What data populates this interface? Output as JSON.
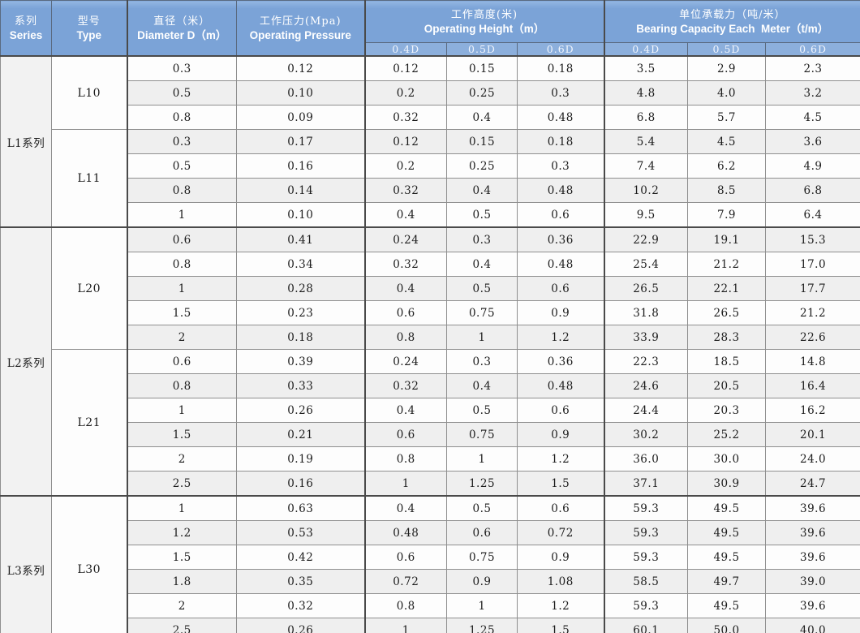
{
  "colors": {
    "header_bg": "#7BA3D7",
    "subheader_bg": "#8CAFDC",
    "header_text": "#FFFFFF",
    "row_bg": "#FDFDFD",
    "row_alt_bg": "#EFEFEF",
    "series_col_bg": "#F2F2F2",
    "border_dark": "#4A4A4A",
    "border_light": "#8F8F8F",
    "cell_text": "#1C1C1C"
  },
  "chart_data": {
    "type": "table",
    "columns": [
      {
        "key": "series",
        "zh": "系列",
        "en": "Series"
      },
      {
        "key": "type",
        "zh": "型号",
        "en": "Type"
      },
      {
        "key": "diameter",
        "zh": "直径（米）",
        "en": "Diameter D（m）"
      },
      {
        "key": "pressure",
        "zh": "工作压力(Mpa)",
        "en": "Operating Pressure"
      },
      {
        "key": "operating_height",
        "zh": "工作高度(米)",
        "en": "Operating Height（m）",
        "subcols": [
          "0.4D",
          "0.5D",
          "0.6D"
        ]
      },
      {
        "key": "bearing_capacity",
        "zh": "单位承载力（吨/米）",
        "en": "Bearing Capacity Each  Meter（t/m）",
        "subcols": [
          "0.4D",
          "0.5D",
          "0.6D"
        ]
      }
    ],
    "row_value_order": [
      "diameter",
      "pressure",
      "oh_0.4D",
      "oh_0.5D",
      "oh_0.6D",
      "bc_0.4D",
      "bc_0.5D",
      "bc_0.6D"
    ],
    "groups": [
      {
        "series": "L1系列",
        "types": [
          {
            "type": "L10",
            "rows": [
              [
                "0.3",
                "0.12",
                "0.12",
                "0.15",
                "0.18",
                "3.5",
                "2.9",
                "2.3"
              ],
              [
                "0.5",
                "0.10",
                "0.2",
                "0.25",
                "0.3",
                "4.8",
                "4.0",
                "3.2"
              ],
              [
                "0.8",
                "0.09",
                "0.32",
                "0.4",
                "0.48",
                "6.8",
                "5.7",
                "4.5"
              ]
            ]
          },
          {
            "type": "L11",
            "rows": [
              [
                "0.3",
                "0.17",
                "0.12",
                "0.15",
                "0.18",
                "5.4",
                "4.5",
                "3.6"
              ],
              [
                "0.5",
                "0.16",
                "0.2",
                "0.25",
                "0.3",
                "7.4",
                "6.2",
                "4.9"
              ],
              [
                "0.8",
                "0.14",
                "0.32",
                "0.4",
                "0.48",
                "10.2",
                "8.5",
                "6.8"
              ],
              [
                "1",
                "0.10",
                "0.4",
                "0.5",
                "0.6",
                "9.5",
                "7.9",
                "6.4"
              ]
            ]
          }
        ]
      },
      {
        "series": "L2系列",
        "types": [
          {
            "type": "L20",
            "rows": [
              [
                "0.6",
                "0.41",
                "0.24",
                "0.3",
                "0.36",
                "22.9",
                "19.1",
                "15.3"
              ],
              [
                "0.8",
                "0.34",
                "0.32",
                "0.4",
                "0.48",
                "25.4",
                "21.2",
                "17.0"
              ],
              [
                "1",
                "0.28",
                "0.4",
                "0.5",
                "0.6",
                "26.5",
                "22.1",
                "17.7"
              ],
              [
                "1.5",
                "0.23",
                "0.6",
                "0.75",
                "0.9",
                "31.8",
                "26.5",
                "21.2"
              ],
              [
                "2",
                "0.18",
                "0.8",
                "1",
                "1.2",
                "33.9",
                "28.3",
                "22.6"
              ]
            ]
          },
          {
            "type": "L21",
            "rows": [
              [
                "0.6",
                "0.39",
                "0.24",
                "0.3",
                "0.36",
                "22.3",
                "18.5",
                "14.8"
              ],
              [
                "0.8",
                "0.33",
                "0.32",
                "0.4",
                "0.48",
                "24.6",
                "20.5",
                "16.4"
              ],
              [
                "1",
                "0.26",
                "0.4",
                "0.5",
                "0.6",
                "24.4",
                "20.3",
                "16.2"
              ],
              [
                "1.5",
                "0.21",
                "0.6",
                "0.75",
                "0.9",
                "30.2",
                "25.2",
                "20.1"
              ],
              [
                "2",
                "0.19",
                "0.8",
                "1",
                "1.2",
                "36.0",
                "30.0",
                "24.0"
              ],
              [
                "2.5",
                "0.16",
                "1",
                "1.25",
                "1.5",
                "37.1",
                "30.9",
                "24.7"
              ]
            ]
          }
        ]
      },
      {
        "series": "L3系列",
        "types": [
          {
            "type": "L30",
            "rows": [
              [
                "1",
                "0.63",
                "0.4",
                "0.5",
                "0.6",
                "59.3",
                "49.5",
                "39.6"
              ],
              [
                "1.2",
                "0.53",
                "0.48",
                "0.6",
                "0.72",
                "59.3",
                "49.5",
                "39.6"
              ],
              [
                "1.5",
                "0.42",
                "0.6",
                "0.75",
                "0.9",
                "59.3",
                "49.5",
                "39.6"
              ],
              [
                "1.8",
                "0.35",
                "0.72",
                "0.9",
                "1.08",
                "58.5",
                "49.7",
                "39.0"
              ],
              [
                "2",
                "0.32",
                "0.8",
                "1",
                "1.2",
                "59.3",
                "49.5",
                "39.6"
              ],
              [
                "2.5",
                "0.26",
                "1",
                "1.25",
                "1.5",
                "60.1",
                "50.0",
                "40.0"
              ]
            ]
          }
        ]
      }
    ]
  }
}
